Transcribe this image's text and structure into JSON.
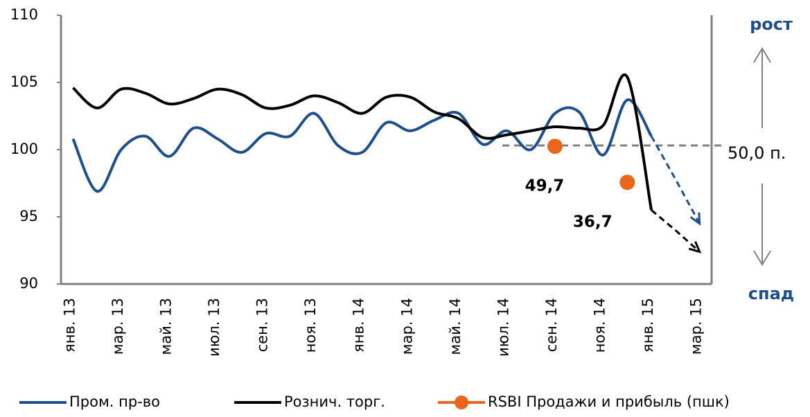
{
  "chart_data": {
    "type": "line",
    "categories": [
      "янв. 13",
      null,
      "мар. 13",
      null,
      "май. 13",
      null,
      "июл. 13",
      null,
      "сен. 13",
      null,
      "ноя. 13",
      null,
      "янв. 14",
      null,
      "мар. 14",
      null,
      "май. 14",
      null,
      "июл. 14",
      null,
      "сен. 14",
      null,
      "ноя. 14",
      null,
      "янв. 15",
      null,
      "мар. 15"
    ],
    "ylim": [
      90,
      110
    ],
    "yticks": [
      90,
      95,
      100,
      105,
      110
    ],
    "y2lim": [
      0,
      97
    ],
    "series": [
      {
        "name": "Пром. пр-во",
        "color": "#1f4e8c",
        "values": [
          100.8,
          96.9,
          100,
          101,
          99.5,
          101.6,
          100.8,
          99.8,
          101.2,
          101,
          102.7,
          100.3,
          99.8,
          102,
          101.4,
          102.2,
          102.7,
          100.4,
          101.4,
          100,
          102.7,
          102.8,
          99.6,
          103.7,
          101,
          null,
          null
        ],
        "forecast": [
          null,
          null,
          null,
          null,
          null,
          null,
          null,
          null,
          null,
          null,
          null,
          null,
          null,
          null,
          null,
          null,
          null,
          null,
          null,
          null,
          null,
          null,
          null,
          null,
          101,
          97.8,
          94.5
        ]
      },
      {
        "name": "Рознич. торг.",
        "color": "#000000",
        "values": [
          104.6,
          103.1,
          104.5,
          104.2,
          103.4,
          103.8,
          104.5,
          104.1,
          103.1,
          103.3,
          104,
          103.5,
          102.7,
          103.9,
          103.9,
          102.8,
          102.3,
          100.9,
          101.1,
          101.4,
          101.7,
          101.6,
          101.8,
          105.4,
          95.5,
          null,
          null
        ],
        "forecast": [
          null,
          null,
          null,
          null,
          null,
          null,
          null,
          null,
          null,
          null,
          null,
          null,
          null,
          null,
          null,
          null,
          null,
          null,
          null,
          null,
          null,
          null,
          null,
          null,
          95.5,
          94,
          92.4
        ]
      },
      {
        "name": "RSBI Продажи и прибыль (пшк)",
        "color": "#e8671c",
        "axis": "y2",
        "values": [
          null,
          null,
          null,
          null,
          null,
          null,
          null,
          null,
          null,
          null,
          null,
          null,
          null,
          null,
          null,
          null,
          null,
          null,
          null,
          null,
          49.7,
          null,
          null,
          36.7,
          null,
          null,
          null
        ],
        "value_labels": [
          null,
          null,
          null,
          null,
          null,
          null,
          null,
          null,
          null,
          null,
          null,
          null,
          null,
          null,
          null,
          null,
          null,
          null,
          null,
          null,
          "49,7",
          null,
          null,
          "36,7",
          null,
          null,
          null
        ]
      }
    ],
    "reference_line": {
      "value": 50,
      "label": "50,0 п.",
      "axis": "y2"
    },
    "annotations": [
      "рост",
      "спад"
    ]
  }
}
